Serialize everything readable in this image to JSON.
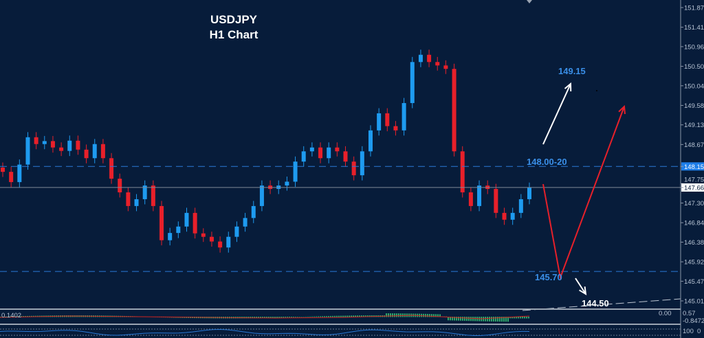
{
  "chart_data": {
    "type": "candlestick",
    "title": "USDJPY",
    "subtitle": "H1 Chart",
    "y_ticks": [
      "151.875",
      "151.415",
      "150.960",
      "150.500",
      "150.045",
      "149.585",
      "149.130",
      "148.670",
      "148.157",
      "147.755",
      "147.664",
      "147.300",
      "146.840",
      "146.385",
      "145.925",
      "145.470",
      "145.010"
    ],
    "ylim": [
      145.01,
      151.875
    ],
    "current_price": "147.664",
    "highlighted_level": "148.157",
    "closes": [
      148.03,
      147.79,
      148.2,
      148.84,
      148.68,
      148.75,
      148.6,
      148.52,
      148.76,
      148.55,
      148.35,
      148.68,
      148.35,
      147.87,
      147.55,
      147.23,
      147.39,
      147.71,
      147.23,
      146.43,
      146.6,
      146.75,
      147.07,
      146.59,
      146.51,
      146.4,
      146.26,
      146.51,
      146.75,
      146.95,
      147.23,
      147.71,
      147.63,
      147.71,
      147.8,
      148.27,
      148.51,
      148.6,
      148.35,
      148.6,
      148.51,
      148.27,
      147.95,
      148.51,
      149.0,
      149.4,
      149.1,
      149.0,
      149.64,
      150.6,
      150.77,
      150.6,
      150.52,
      150.44,
      148.51,
      147.55,
      147.23,
      147.71,
      147.63,
      147.07,
      146.91,
      147.07,
      147.39,
      147.66
    ],
    "annotations": {
      "target_up": "149.15",
      "resistance": "148.00-20",
      "support": "145.70",
      "target_down": "144.50"
    },
    "colors": {
      "bull": "#1e9bf0",
      "bear": "#e8202a",
      "background": "#071c3a",
      "arrow_red": "#e8202a",
      "arrow_white": "#ffffff",
      "level": "#2a7ad8"
    },
    "macd_labels": [
      "0.57",
      "0.00",
      "-0.8472"
    ],
    "macd_left_label": "0.1402",
    "rsi_labels": [
      "100",
      "0"
    ]
  }
}
